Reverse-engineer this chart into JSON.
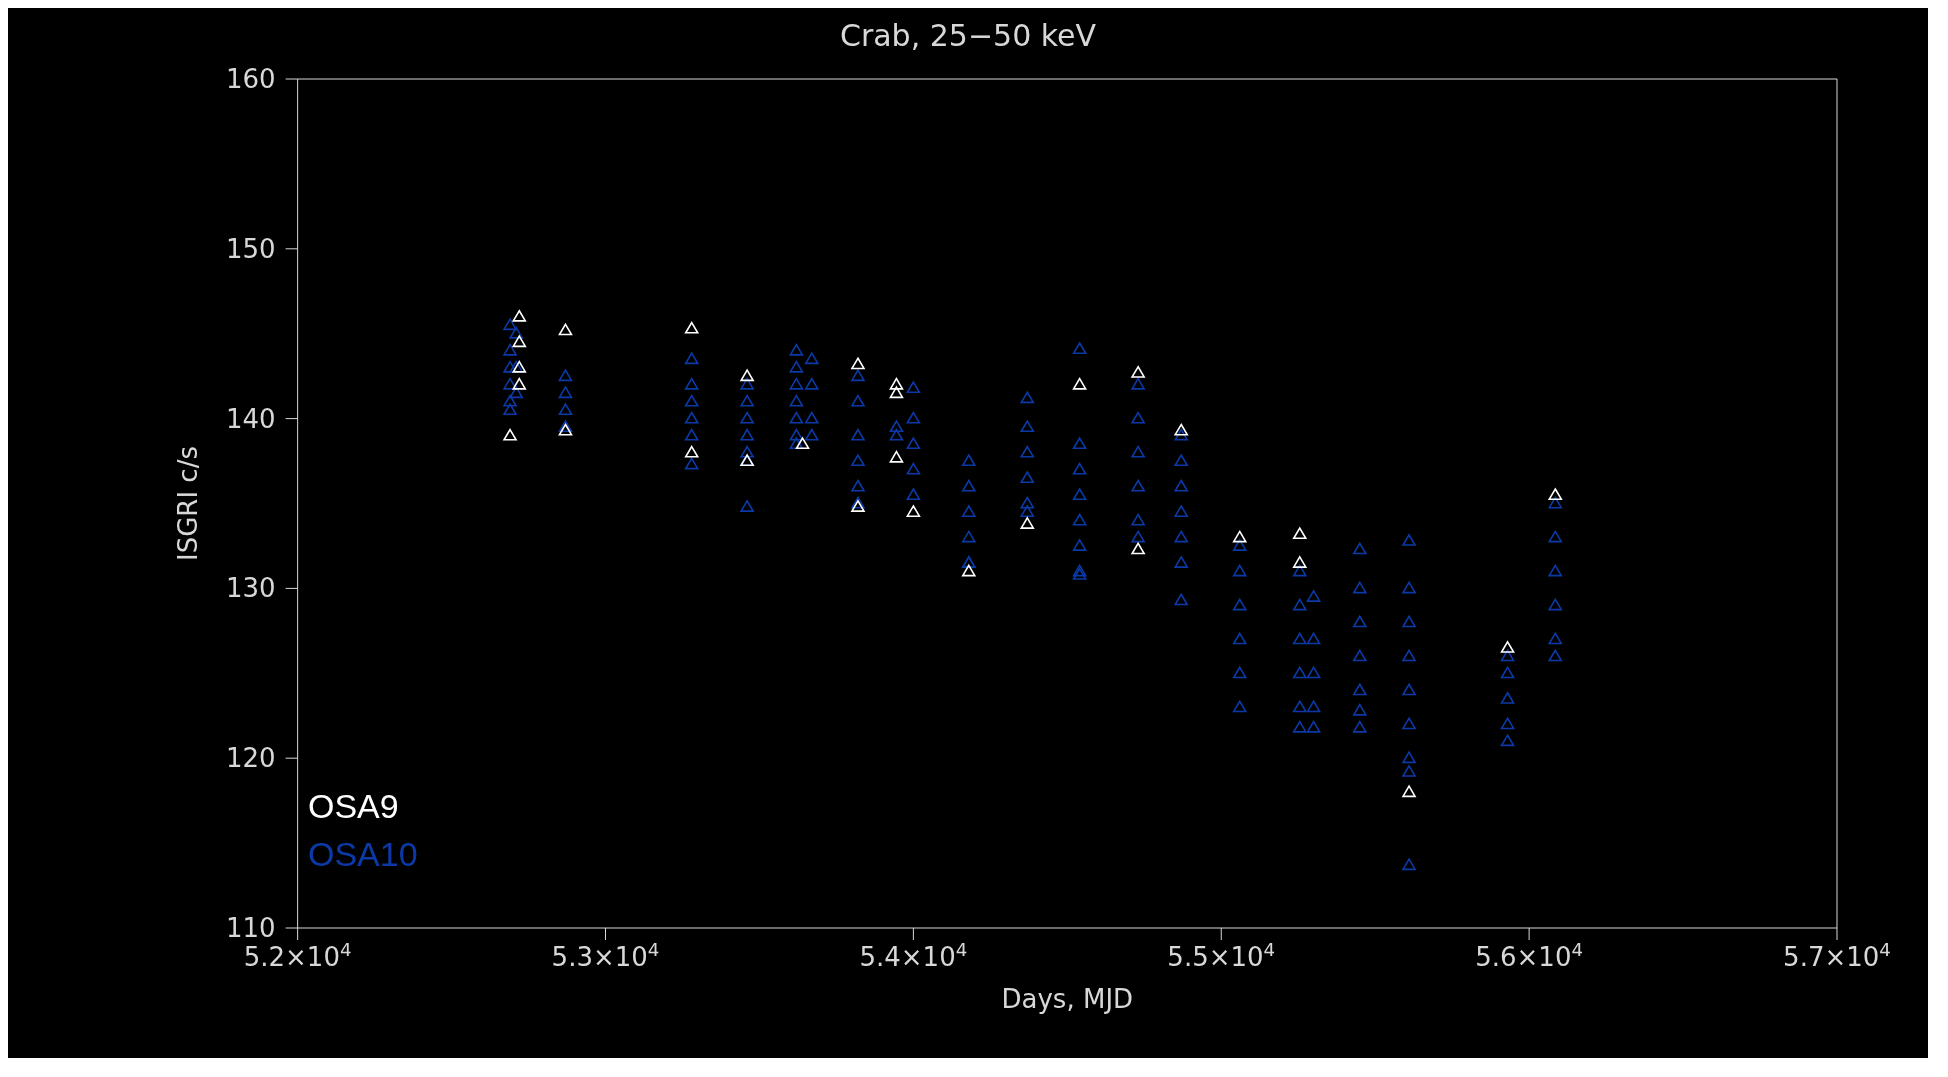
{
  "chart_data": {
    "type": "scatter",
    "title": "Crab, 25−50 keV",
    "xlabel": "Days, MJD",
    "ylabel": "ISGRI c/s",
    "xlim": [
      52000,
      57000
    ],
    "xticks": [
      {
        "value": 52000,
        "label": "5.2×10$^{4}$"
      },
      {
        "value": 53000,
        "label": "5.3×10$^{4}$"
      },
      {
        "value": 54000,
        "label": "5.4×10$^{4}$"
      },
      {
        "value": 55000,
        "label": "5.5×10$^{4}$"
      },
      {
        "value": 56000,
        "label": "5.6×10$^{4}$"
      },
      {
        "value": 57000,
        "label": "5.7×10$^{4}$"
      }
    ],
    "ylim": [
      110,
      160
    ],
    "yticks": [
      110,
      120,
      130,
      140,
      150,
      160
    ],
    "grid": false,
    "legend": "bottom left",
    "marker": "triangle",
    "series": [
      {
        "name": "OSA10",
        "color": "#0b3aa8",
        "x": [
          52690,
          52690,
          52690,
          52690,
          52690,
          52690,
          52710,
          52710,
          52710,
          52870,
          52870,
          52870,
          52870,
          53280,
          53280,
          53280,
          53280,
          53280,
          53280,
          53460,
          53460,
          53460,
          53460,
          53460,
          53460,
          53460,
          53620,
          53620,
          53620,
          53620,
          53620,
          53620,
          53620,
          53670,
          53670,
          53670,
          53670,
          53820,
          53820,
          53820,
          53820,
          53820,
          53820,
          53945,
          53945,
          54000,
          54000,
          54000,
          54000,
          54000,
          54180,
          54180,
          54180,
          54180,
          54180,
          54180,
          54370,
          54370,
          54370,
          54370,
          54370,
          54370,
          54540,
          54540,
          54540,
          54540,
          54540,
          54540,
          54540,
          54540,
          54730,
          54730,
          54730,
          54730,
          54730,
          54730,
          54870,
          54870,
          54870,
          54870,
          54870,
          54870,
          54870,
          55060,
          55060,
          55060,
          55060,
          55060,
          55060,
          55255,
          55255,
          55255,
          55255,
          55255,
          55255,
          55300,
          55300,
          55300,
          55300,
          55300,
          55450,
          55450,
          55450,
          55450,
          55450,
          55450,
          55450,
          55610,
          55610,
          55610,
          55610,
          55610,
          55610,
          55610,
          55610,
          55610,
          55930,
          55930,
          55930,
          55930,
          55930,
          56085,
          56085,
          56085,
          56085,
          56085,
          56085
        ],
        "values": [
          145.5,
          144,
          143,
          142,
          141,
          140.5,
          145,
          143,
          141.5,
          142.5,
          141.5,
          140.5,
          139.5,
          143.5,
          142,
          141,
          140,
          139,
          137.3,
          142,
          141,
          140,
          139,
          138,
          137.5,
          134.8,
          144,
          143,
          142,
          141,
          140,
          139,
          138.5,
          143.5,
          142,
          140,
          139,
          142.5,
          141,
          139,
          137.5,
          136,
          135,
          139.5,
          139,
          141.8,
          140,
          138.5,
          137,
          135.5,
          137.5,
          136,
          134.5,
          133,
          131.5,
          131.5,
          141.2,
          139.5,
          138,
          136.5,
          135,
          134.5,
          144.1,
          138.5,
          137,
          135.5,
          134,
          132.5,
          131,
          130.8,
          142,
          140,
          138,
          136,
          134,
          133,
          139,
          137.5,
          136,
          134.5,
          133,
          131.5,
          129.3,
          132.5,
          131,
          129,
          127,
          125,
          123,
          131,
          129,
          127,
          125,
          123,
          121.8,
          129.5,
          127,
          125,
          123,
          121.8,
          132.3,
          130,
          128,
          126,
          124,
          122.8,
          121.8,
          132.8,
          130,
          128,
          126,
          124,
          122,
          120,
          119.2,
          113.7,
          126,
          125,
          123.5,
          122,
          121,
          135,
          133,
          131,
          129,
          127,
          126
        ]
      },
      {
        "name": "OSA9",
        "color": "#ffffff",
        "x": [
          52690,
          52720,
          52720,
          52720,
          52720,
          52870,
          52870,
          53280,
          53280,
          53460,
          53460,
          53640,
          53820,
          53820,
          53945,
          53945,
          53945,
          54000,
          54180,
          54370,
          54540,
          54730,
          54730,
          54870,
          55060,
          55255,
          55255,
          55610,
          55930,
          56085
        ],
        "values": [
          139,
          146,
          144.5,
          143,
          142,
          145.2,
          139.3,
          145.3,
          138,
          142.5,
          137.5,
          138.5,
          143.2,
          134.8,
          142,
          141.5,
          137.7,
          134.5,
          131,
          133.8,
          142,
          142.7,
          132.3,
          139.3,
          133,
          133.2,
          131.5,
          118,
          126.5,
          135.5
        ]
      }
    ]
  }
}
